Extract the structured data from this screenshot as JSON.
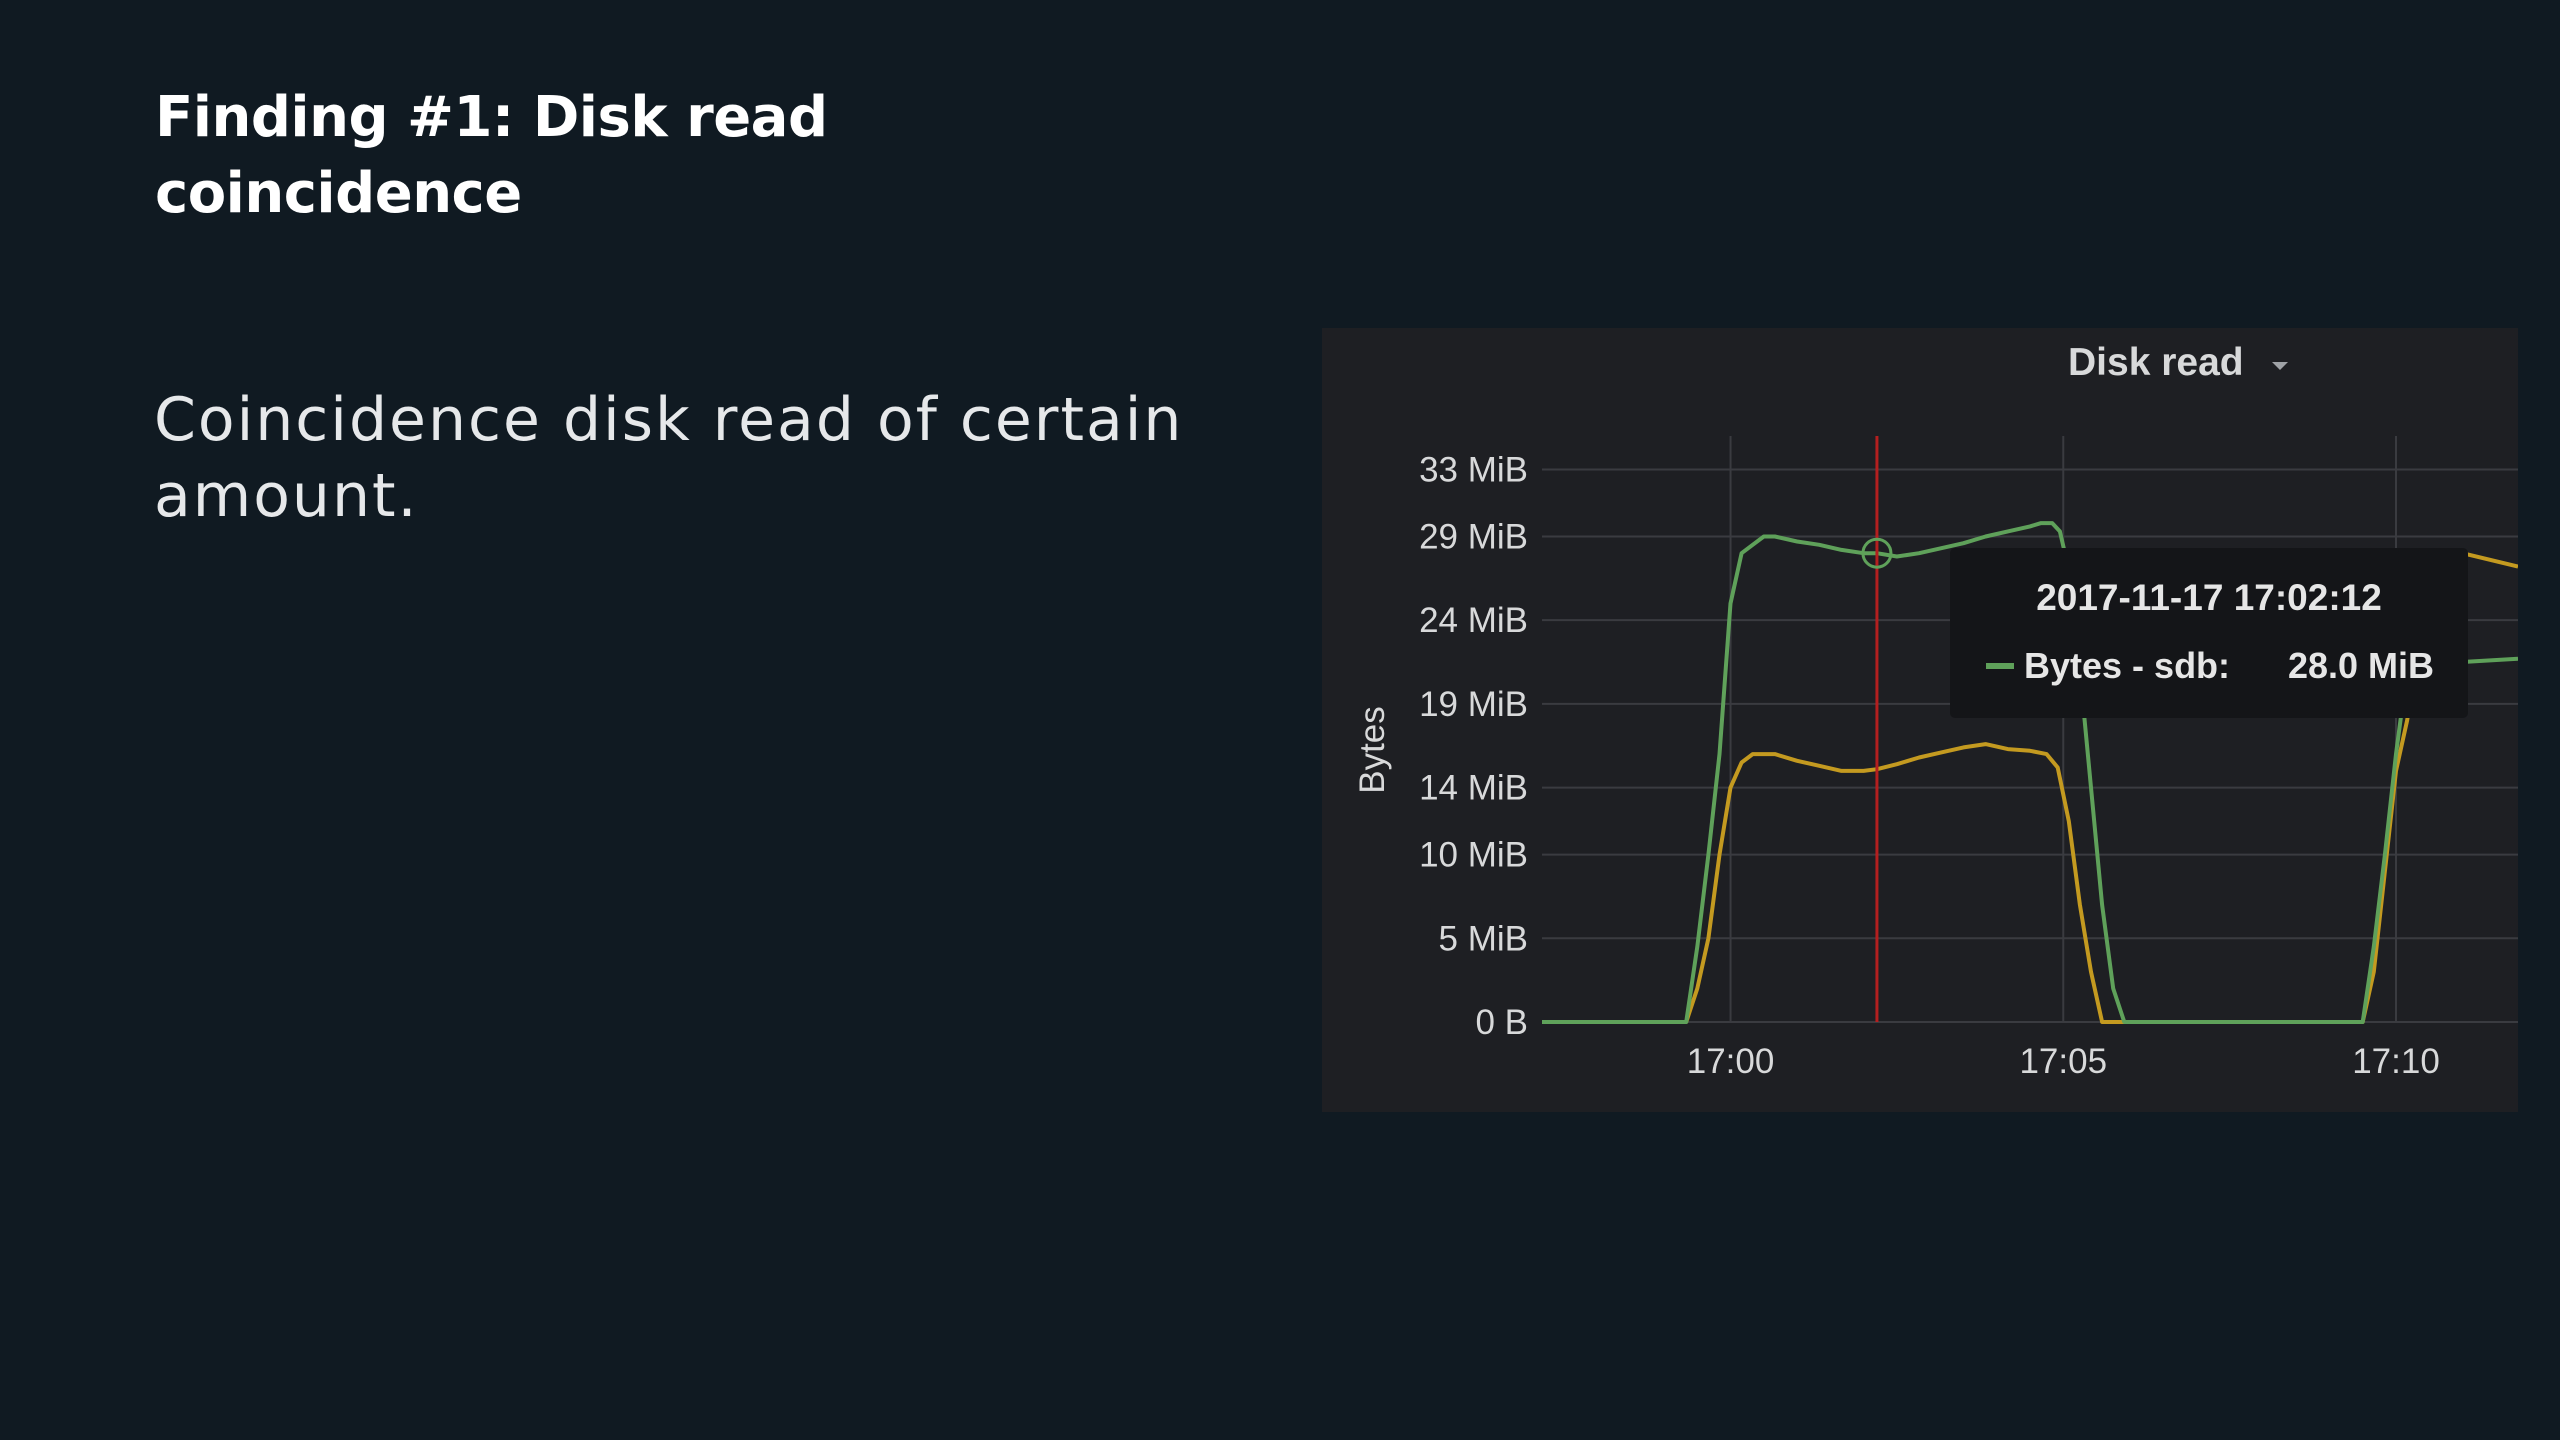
{
  "slide": {
    "title": "Finding #1: Disk read coincidence",
    "body": "Coincidence disk read of certain amount."
  },
  "chart_data": {
    "type": "line",
    "title": "Disk read",
    "ylabel": "Bytes",
    "xlabel": "",
    "x_ticks": [
      "17:00",
      "17:05",
      "17:10"
    ],
    "y_ticks": [
      "0 B",
      "5 MiB",
      "10 MiB",
      "14 MiB",
      "19 MiB",
      "24 MiB",
      "29 MiB",
      "33 MiB"
    ],
    "xlim": [
      "16:57:10",
      "17:11:50"
    ],
    "ylim": [
      0,
      35
    ],
    "y_unit": "MiB",
    "grid": true,
    "hover_time": "17:02:12",
    "colors": {
      "green": "#5fa15a",
      "yellow": "#c49a20",
      "hover_line": "#b41f1f",
      "grid": "#3a3b40",
      "panel_bg": "#1e1f23",
      "slide_bg": "#101a22"
    },
    "series": [
      {
        "name": "Bytes - sdb",
        "color": "green",
        "x": [
          "16:57:10",
          "16:59:20",
          "16:59:30",
          "16:59:40",
          "16:59:50",
          "17:00:00",
          "17:00:10",
          "17:00:20",
          "17:00:30",
          "17:00:40",
          "17:01:00",
          "17:01:20",
          "17:01:40",
          "17:02:00",
          "17:02:12",
          "17:02:30",
          "17:02:50",
          "17:03:10",
          "17:03:30",
          "17:03:50",
          "17:04:10",
          "17:04:30",
          "17:04:40",
          "17:04:50",
          "17:04:57",
          "17:05:05",
          "17:05:15",
          "17:05:25",
          "17:05:35",
          "17:05:45",
          "17:05:55",
          "17:06:20",
          "17:08:00",
          "17:09:30",
          "17:09:40",
          "17:09:50",
          "17:10:00",
          "17:10:10",
          "17:10:20",
          "17:10:30",
          "17:11:00",
          "17:11:50"
        ],
        "values": [
          0,
          0,
          4.5,
          10,
          16,
          25,
          28,
          28.5,
          29,
          29,
          28.7,
          28.5,
          28.2,
          28,
          28,
          27.8,
          28,
          28.3,
          28.6,
          29,
          29.3,
          29.6,
          29.8,
          29.8,
          29.3,
          27,
          21,
          14,
          7,
          2,
          0,
          0,
          0,
          0,
          4.5,
          10,
          16,
          21,
          21.3,
          21.5,
          21.5,
          21.7
        ]
      },
      {
        "name": "",
        "color": "yellow",
        "x": [
          "16:57:10",
          "16:59:20",
          "16:59:30",
          "16:59:40",
          "16:59:50",
          "17:00:00",
          "17:00:10",
          "17:00:20",
          "17:00:30",
          "17:00:40",
          "17:01:00",
          "17:01:20",
          "17:01:40",
          "17:02:00",
          "17:02:12",
          "17:02:30",
          "17:02:50",
          "17:03:10",
          "17:03:30",
          "17:03:50",
          "17:04:10",
          "17:04:30",
          "17:04:45",
          "17:04:55",
          "17:05:05",
          "17:05:15",
          "17:05:25",
          "17:05:35",
          "17:05:45",
          "17:06:00",
          "17:08:00",
          "17:09:30",
          "17:09:40",
          "17:09:50",
          "17:10:00",
          "17:10:10",
          "17:10:20",
          "17:10:30",
          "17:10:45",
          "17:11:00",
          "17:11:50"
        ],
        "values": [
          0,
          0,
          2,
          5,
          10,
          14,
          15.5,
          16,
          16,
          16,
          15.6,
          15.3,
          15,
          15,
          15.1,
          15.4,
          15.8,
          16.1,
          16.4,
          16.6,
          16.3,
          16.2,
          16,
          15.2,
          12,
          7,
          3,
          0,
          0,
          0,
          0,
          0,
          3,
          9,
          15,
          18,
          22,
          27,
          28,
          28,
          27.2
        ]
      }
    ],
    "tooltip": {
      "time": "2017-11-17 17:02:12",
      "series_label": "Bytes - sdb:",
      "value": "28.0 MiB"
    }
  }
}
